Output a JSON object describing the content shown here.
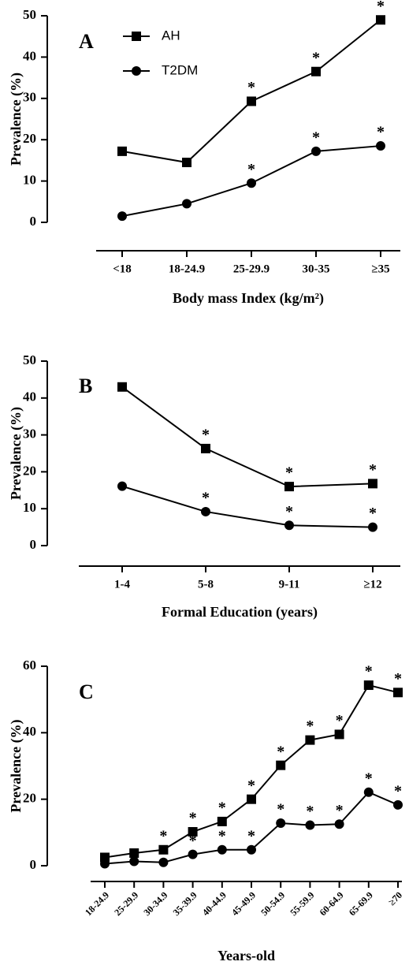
{
  "chart_data": [
    {
      "type": "line",
      "label": "A",
      "ylabel": "Prevalence (%)",
      "xlabel": "Body mass Index (kg/m²)",
      "categories": [
        "<18",
        "18-24.9",
        "25-29.9",
        "30-35",
        "≥35"
      ],
      "ylim": [
        0,
        50
      ],
      "yticks": [
        0,
        10,
        20,
        30,
        40,
        50
      ],
      "legend": true,
      "legend_position": "upper left",
      "rotate_xticks": false,
      "series": [
        {
          "name": "AH",
          "color": "#000000",
          "marker": "square",
          "values": [
            17.2,
            14.5,
            29.3,
            36.5,
            49.0
          ],
          "marker_note": "*",
          "noted": [
            false,
            false,
            true,
            true,
            true
          ]
        },
        {
          "name": "T2DM",
          "color": "#000000",
          "marker": "circle",
          "values": [
            1.5,
            4.5,
            9.5,
            17.2,
            18.5
          ],
          "marker_note": "*",
          "noted": [
            false,
            false,
            true,
            true,
            true
          ]
        }
      ]
    },
    {
      "type": "line",
      "label": "B",
      "ylabel": "Prevalence (%)",
      "xlabel": "Formal Education (years)",
      "categories": [
        "1-4",
        "5-8",
        "9-11",
        "≥12"
      ],
      "ylim": [
        0,
        50
      ],
      "yticks": [
        0,
        10,
        20,
        30,
        40,
        50
      ],
      "legend": false,
      "rotate_xticks": false,
      "series": [
        {
          "color": "#000000",
          "marker": "square",
          "values": [
            43.0,
            26.3,
            16.0,
            16.8
          ],
          "marker_note": "*",
          "noted": [
            false,
            true,
            true,
            true
          ]
        },
        {
          "color": "#000000",
          "marker": "circle",
          "values": [
            16.1,
            9.2,
            5.5,
            5.0
          ],
          "marker_note": "*",
          "noted": [
            false,
            true,
            true,
            true
          ]
        }
      ]
    },
    {
      "type": "line",
      "label": "C",
      "ylabel": "Prevalence (%)",
      "xlabel": "Years-old",
      "categories": [
        "18-24.9",
        "25-29.9",
        "30-34.9",
        "35-39.9",
        "40-44.9",
        "45-49.9",
        "50-54.9",
        "55-59.9",
        "60-64.9",
        "65-69.9",
        "≥70"
      ],
      "ylim": [
        0,
        60
      ],
      "yticks": [
        0,
        20,
        40,
        60
      ],
      "legend": false,
      "rotate_xticks": true,
      "series": [
        {
          "color": "#000000",
          "marker": "square",
          "values": [
            2.5,
            3.8,
            4.8,
            10.2,
            13.3,
            20.0,
            30.2,
            37.8,
            39.5,
            54.3,
            52.1
          ],
          "marker_note": "*",
          "noted": [
            false,
            false,
            true,
            true,
            true,
            true,
            true,
            true,
            true,
            true,
            true
          ]
        },
        {
          "color": "#000000",
          "marker": "circle",
          "values": [
            0.6,
            1.3,
            1.0,
            3.4,
            4.8,
            4.8,
            12.8,
            12.2,
            12.5,
            22.1,
            18.3
          ],
          "marker_note": "*",
          "noted": [
            false,
            false,
            false,
            true,
            true,
            true,
            true,
            true,
            true,
            true,
            true
          ]
        }
      ]
    }
  ]
}
